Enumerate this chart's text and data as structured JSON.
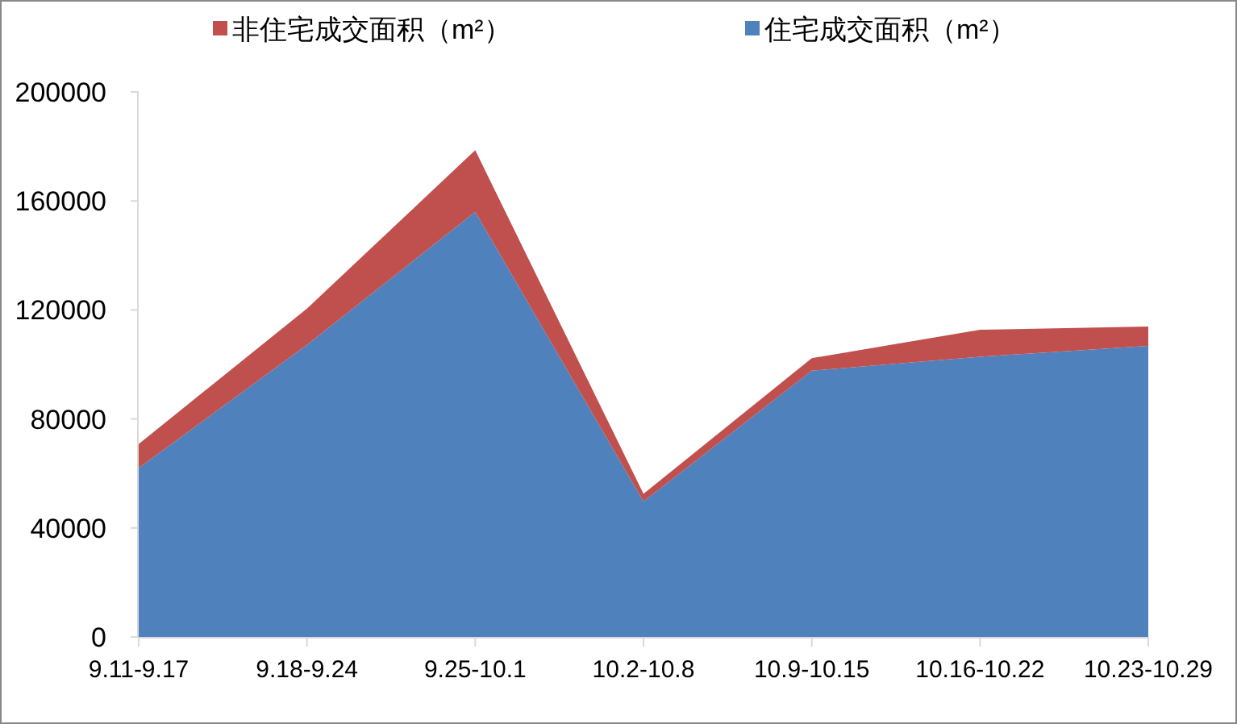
{
  "chart_data": {
    "type": "area",
    "stacked": true,
    "legend": "top",
    "grid": false,
    "categories": [
      "9.11-9.17",
      "9.18-9.24",
      "9.25-10.1",
      "10.2-10.8",
      "10.9-10.15",
      "10.16-10.22",
      "10.23-10.29"
    ],
    "series": [
      {
        "name": "住宅成交面积（m²）",
        "color": "#4f81bd",
        "values": [
          62000,
          107200,
          156000,
          49700,
          97700,
          102800,
          106800
        ]
      },
      {
        "name": "非住宅成交面积（m²）",
        "color": "#c0504d",
        "values": [
          8800,
          13300,
          22600,
          2800,
          4600,
          9900,
          7100
        ]
      }
    ],
    "ylim": [
      0,
      200000
    ],
    "yticks": [
      0,
      40000,
      80000,
      120000,
      160000,
      200000
    ]
  }
}
